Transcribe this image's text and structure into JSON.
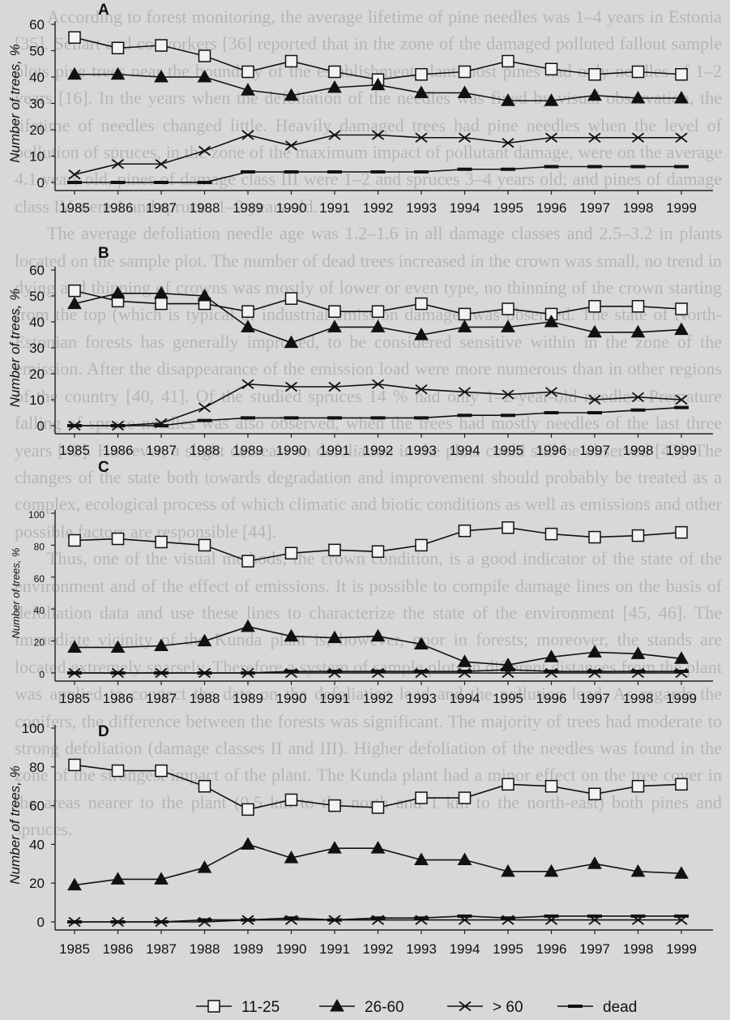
{
  "page_text": [
    "According to forest monitoring, the average lifetime of pine needles was 1–4 years in Estonia [35]. Sellart and co-workers [36] reported that in the zone of the damaged polluted fallout sample plots pine trees near the boundary of the establishment plant most pines had only needles of 1–2 years [16]. In the years when the defoliation of the needles was fixed by visual observation, the lifetime of needles changed little. Heavily damaged trees had pine needles when the level of pollution of spruces, in the zone of the maximum impact of pollutant damage, were on the average 4.1 years old, pines of damage class III were 1–2 and spruces 3–4 years old; and pines of damage class IV were 1 and spruces 1–2 years old.",
    "The average defoliation needle age was 1.2–1.6 in all damage classes and 2.5–3.2 in plants located on the sample plot. The number of dead trees increased in the crown was small, no trend in dying and thinning of crowns was mostly of lower or even type, no thinning of the crown starting from the top (which is typical of industrial emission damage) was observed. The state of North-Estonian forests has generally improved, to be considered sensitive within in the zone of the emission. After the disappearance of the emission load were more numerous than in other regions of the country [40, 41]. Of the studied spruces 14 % had only 1–2-year-old needles. Premature falling of spruce needles was also observed, when the trees had mostly needles of the last three years [42]. However, a slight decrease in defoliation in the plots could still be observed [43]. The changes of the state both towards degradation and improvement should probably be treated as a complex, ecological process of which climatic and biotic conditions as well as emissions and other possible factors are responsible [44].",
    "Thus, one of the visual methods, the crown condition, is a good indicator of the state of the environment and of the effect of emissions. It is possible to compile damage lines on the basis of defoliation data and use these lines to characterize the state of the environment [45, 46]. The immediate vicinity of the Kunda plant is, however, poor in forests; moreover, the stands are located extremely sparsely. Therefore a system of sample plots in different distances from the plant was applied to connect the data on the defoliation load and the pollution load. As regards the conifers, the difference between the forests was significant. The majority of trees had moderate to strong defoliation (damage classes II and III). Higher defoliation of the needles was found in the zone of the strongest impact of the plant. The Kunda plant had a minor effect on the tree cover in the areas nearer to the plant (0.5 km to the north and 1 km to the north-east) both pines and spruces."
  ],
  "legend": {
    "items": [
      {
        "label": "11-25",
        "marker": "square"
      },
      {
        "label": "26-60",
        "marker": "triangle"
      },
      {
        "label": "> 60",
        "marker": "x"
      },
      {
        "label": "dead",
        "marker": "dash"
      }
    ]
  },
  "chart_data": [
    {
      "panel": "A",
      "type": "line",
      "ylabel": "Number of trees, %",
      "ylim": [
        0,
        60
      ],
      "yticks": [
        0,
        10,
        20,
        30,
        40,
        50,
        60
      ],
      "x": [
        "1985",
        "1986",
        "1987",
        "1988",
        "1989",
        "1990",
        "1991",
        "1992",
        "1993",
        "1994",
        "1995",
        "1996",
        "1997",
        "1998",
        "1999"
      ],
      "series": [
        {
          "name": "11-25",
          "values": [
            55,
            51,
            52,
            48,
            42,
            46,
            42,
            39,
            41,
            42,
            46,
            43,
            41,
            42,
            41
          ]
        },
        {
          "name": "26-60",
          "values": [
            41,
            41,
            40,
            40,
            35,
            33,
            36,
            37,
            34,
            34,
            31,
            31,
            33,
            32,
            32
          ]
        },
        {
          "name": "> 60",
          "values": [
            3,
            7,
            7,
            12,
            18,
            14,
            18,
            18,
            17,
            17,
            15,
            17,
            17,
            17,
            17
          ]
        },
        {
          "name": "dead",
          "values": [
            0,
            0,
            0,
            0,
            4,
            4,
            4,
            4,
            4,
            5,
            5,
            6,
            6,
            6,
            6
          ]
        }
      ]
    },
    {
      "panel": "B",
      "type": "line",
      "ylabel": "Number of trees, %",
      "ylim": [
        0,
        60
      ],
      "yticks": [
        0,
        10,
        20,
        30,
        40,
        50,
        60
      ],
      "x": [
        "1985",
        "1986",
        "1987",
        "1988",
        "1989",
        "1990",
        "1991",
        "1992",
        "1993",
        "1994",
        "1995",
        "1996",
        "1997",
        "1998",
        "1999"
      ],
      "series": [
        {
          "name": "11-25",
          "values": [
            52,
            48,
            47,
            47,
            44,
            49,
            44,
            44,
            47,
            43,
            45,
            43,
            46,
            46,
            45
          ]
        },
        {
          "name": "26-60",
          "values": [
            47,
            51,
            51,
            50,
            38,
            32,
            38,
            38,
            35,
            38,
            38,
            40,
            36,
            36,
            37
          ]
        },
        {
          "name": "> 60",
          "values": [
            0,
            0,
            1,
            7,
            16,
            15,
            15,
            16,
            14,
            13,
            12,
            13,
            10,
            11,
            10
          ]
        },
        {
          "name": "dead",
          "values": [
            0,
            0,
            0,
            2,
            3,
            3,
            3,
            3,
            3,
            4,
            4,
            5,
            5,
            6,
            7
          ]
        }
      ]
    },
    {
      "panel": "C",
      "type": "line",
      "ylabel": "Number of trees, %",
      "ylim": [
        0,
        100
      ],
      "yticks": [
        0,
        20,
        40,
        60,
        80,
        100
      ],
      "x": [
        "1985",
        "1986",
        "1987",
        "1988",
        "1989",
        "1990",
        "1991",
        "1992",
        "1993",
        "1994",
        "1995",
        "1996",
        "1997",
        "1998",
        "1999"
      ],
      "series": [
        {
          "name": "11-25",
          "values": [
            83,
            84,
            82,
            80,
            70,
            75,
            77,
            76,
            80,
            89,
            91,
            87,
            85,
            86,
            88
          ]
        },
        {
          "name": "26-60",
          "values": [
            16,
            16,
            17,
            20,
            29,
            23,
            22,
            23,
            18,
            7,
            5,
            10,
            13,
            12,
            9
          ]
        },
        {
          "name": "> 60",
          "values": [
            0,
            0,
            0,
            0,
            0,
            0,
            0,
            0,
            0,
            0,
            0,
            0,
            0,
            0,
            0
          ]
        },
        {
          "name": "dead",
          "values": [
            0,
            0,
            0,
            0,
            0,
            1,
            1,
            1,
            1,
            1,
            2,
            1,
            1,
            1,
            1
          ]
        }
      ]
    },
    {
      "panel": "D",
      "type": "line",
      "ylabel": "Number of trees, %",
      "ylim": [
        0,
        100
      ],
      "yticks": [
        0,
        20,
        40,
        60,
        80,
        100
      ],
      "x": [
        "1985",
        "1986",
        "1987",
        "1988",
        "1989",
        "1990",
        "1991",
        "1992",
        "1993",
        "1994",
        "1995",
        "1996",
        "1997",
        "1998",
        "1999"
      ],
      "series": [
        {
          "name": "11-25",
          "values": [
            81,
            78,
            78,
            70,
            58,
            63,
            60,
            59,
            64,
            64,
            71,
            70,
            66,
            70,
            71
          ]
        },
        {
          "name": "26-60",
          "values": [
            19,
            22,
            22,
            28,
            40,
            33,
            38,
            38,
            32,
            32,
            26,
            26,
            30,
            26,
            25
          ]
        },
        {
          "name": "> 60",
          "values": [
            0,
            0,
            0,
            0,
            1,
            1,
            1,
            1,
            1,
            1,
            1,
            1,
            1,
            1,
            1
          ]
        },
        {
          "name": "dead",
          "values": [
            0,
            0,
            0,
            1,
            1,
            2,
            1,
            2,
            2,
            3,
            2,
            3,
            3,
            3,
            3
          ]
        }
      ]
    }
  ]
}
